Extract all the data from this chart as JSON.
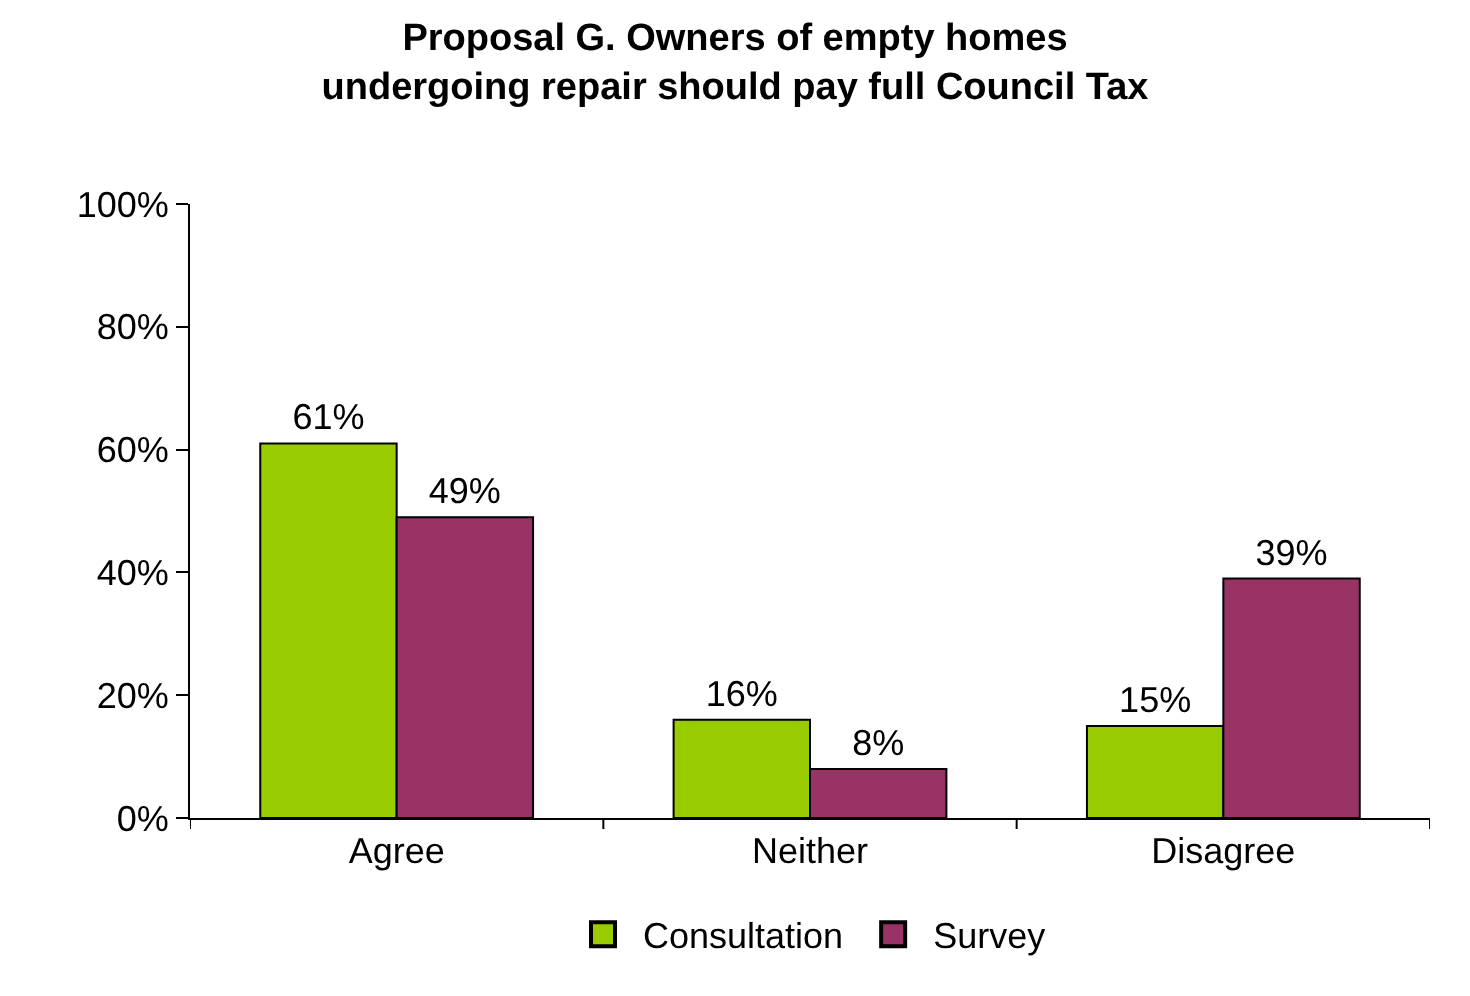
{
  "chart_data": {
    "type": "bar",
    "title": "Proposal G. Owners of empty homes\nundergoing repair should pay full Council Tax",
    "categories": [
      "Agree",
      "Neither",
      "Disagree"
    ],
    "series": [
      {
        "name": "Consultation",
        "color": "#99cc00",
        "values": [
          61,
          16,
          15
        ],
        "value_labels": [
          "61%",
          "16%",
          "15%"
        ]
      },
      {
        "name": "Survey",
        "color": "#993366",
        "values": [
          49,
          8,
          39
        ],
        "value_labels": [
          "49%",
          "8%",
          "39%"
        ]
      }
    ],
    "ylim": [
      0,
      100
    ],
    "yticks": [
      {
        "value": 0,
        "label": "0%"
      },
      {
        "value": 20,
        "label": "20%"
      },
      {
        "value": 40,
        "label": "40%"
      },
      {
        "value": 60,
        "label": "60%"
      },
      {
        "value": 80,
        "label": "80%"
      },
      {
        "value": 100,
        "label": "100%"
      }
    ],
    "grid": false,
    "legend": "bottom"
  }
}
